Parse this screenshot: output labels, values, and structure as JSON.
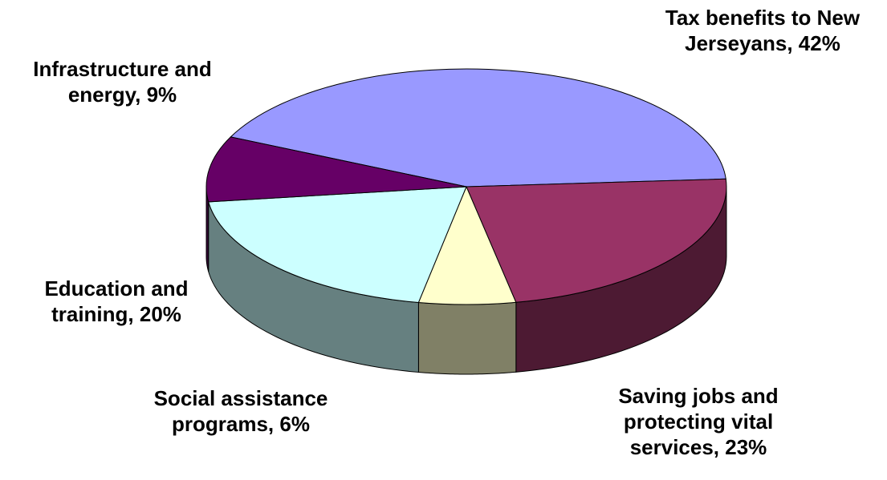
{
  "chart_data": {
    "type": "pie",
    "title": "",
    "style": "3d",
    "slices": [
      {
        "label_line1": "Tax benefits to New",
        "label_line2": "Jerseyans, 42%",
        "label_line3": "",
        "value": 42,
        "color": "#9999ff",
        "side_color": "#4c4c80"
      },
      {
        "label_line1": "Saving jobs and",
        "label_line2": "protecting vital",
        "label_line3": "services, 23%",
        "value": 23,
        "color": "#993366",
        "side_color": "#4d1a33"
      },
      {
        "label_line1": "Social assistance",
        "label_line2": "programs, 6%",
        "label_line3": "",
        "value": 6,
        "color": "#ffffcc",
        "side_color": "#808066"
      },
      {
        "label_line1": "Education and",
        "label_line2": "training, 20%",
        "label_line3": "",
        "value": 20,
        "color": "#ccffff",
        "side_color": "#668080"
      },
      {
        "label_line1": "Infrastructure and",
        "label_line2": "energy, 9%",
        "label_line3": "",
        "value": 9,
        "color": "#660066",
        "side_color": "#330033"
      }
    ]
  }
}
